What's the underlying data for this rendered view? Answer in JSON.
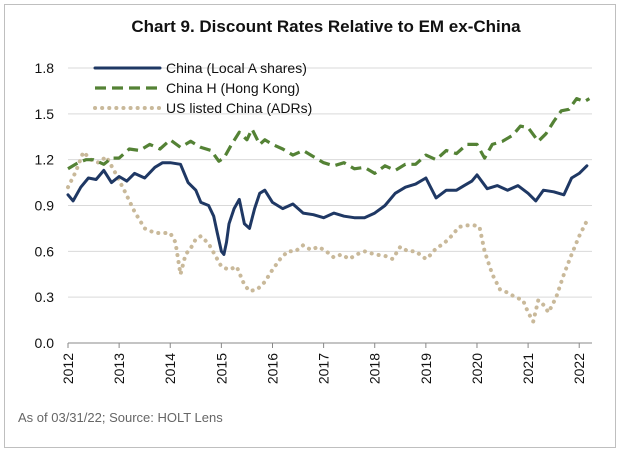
{
  "chart_data": {
    "type": "line",
    "title": "Chart 9. Discount Rates Relative to EM ex-China",
    "xlabel": "",
    "ylabel": "",
    "ylim": [
      0.0,
      1.8
    ],
    "yticks": [
      "0.0",
      "0.3",
      "0.6",
      "0.9",
      "1.2",
      "1.5",
      "1.8"
    ],
    "xlim": [
      2012.0,
      2022.25
    ],
    "xticks": [
      "2012",
      "2013",
      "2014",
      "2015",
      "2016",
      "2017",
      "2018",
      "2019",
      "2020",
      "2021",
      "2022"
    ],
    "grid": "horizontal",
    "legend_position": "top-left",
    "source_note": "As of 03/31/22; Source: HOLT Lens",
    "series": [
      {
        "name": "China (Local A shares)",
        "color": "#1f3864",
        "style": "solid",
        "x": [
          2012.0,
          2012.1,
          2012.25,
          2012.4,
          2012.55,
          2012.7,
          2012.85,
          2013.0,
          2013.15,
          2013.3,
          2013.5,
          2013.7,
          2013.85,
          2014.0,
          2014.2,
          2014.35,
          2014.5,
          2014.6,
          2014.75,
          2014.85,
          2014.92,
          2015.0,
          2015.05,
          2015.1,
          2015.15,
          2015.25,
          2015.35,
          2015.45,
          2015.55,
          2015.65,
          2015.75,
          2015.85,
          2016.0,
          2016.2,
          2016.4,
          2016.6,
          2016.8,
          2017.0,
          2017.2,
          2017.4,
          2017.6,
          2017.8,
          2018.0,
          2018.2,
          2018.4,
          2018.6,
          2018.8,
          2019.0,
          2019.2,
          2019.4,
          2019.6,
          2019.75,
          2019.9,
          2020.0,
          2020.2,
          2020.4,
          2020.6,
          2020.8,
          2021.0,
          2021.15,
          2021.3,
          2021.5,
          2021.7,
          2021.85,
          2022.0,
          2022.15
        ],
        "values": [
          0.97,
          0.93,
          1.02,
          1.08,
          1.07,
          1.13,
          1.05,
          1.09,
          1.06,
          1.11,
          1.08,
          1.15,
          1.18,
          1.18,
          1.17,
          1.05,
          1.0,
          0.92,
          0.9,
          0.83,
          0.72,
          0.6,
          0.58,
          0.66,
          0.78,
          0.88,
          0.94,
          0.78,
          0.75,
          0.88,
          0.98,
          1.0,
          0.92,
          0.88,
          0.91,
          0.85,
          0.84,
          0.82,
          0.85,
          0.83,
          0.82,
          0.82,
          0.85,
          0.9,
          0.98,
          1.02,
          1.04,
          1.08,
          0.95,
          1.0,
          1.0,
          1.03,
          1.06,
          1.1,
          1.01,
          1.03,
          1.0,
          1.03,
          0.98,
          0.93,
          1.0,
          0.99,
          0.97,
          1.08,
          1.11,
          1.16
        ]
      },
      {
        "name": "China H (Hong Kong)",
        "color": "#548235",
        "style": "dashed",
        "x": [
          2012.0,
          2012.2,
          2012.35,
          2012.5,
          2012.7,
          2012.85,
          2013.0,
          2013.2,
          2013.4,
          2013.6,
          2013.8,
          2014.0,
          2014.2,
          2014.4,
          2014.6,
          2014.8,
          2014.95,
          2015.05,
          2015.2,
          2015.35,
          2015.5,
          2015.6,
          2015.75,
          2015.85,
          2016.0,
          2016.2,
          2016.4,
          2016.6,
          2016.8,
          2017.0,
          2017.2,
          2017.4,
          2017.6,
          2017.8,
          2018.0,
          2018.2,
          2018.4,
          2018.6,
          2018.8,
          2019.0,
          2019.2,
          2019.4,
          2019.6,
          2019.8,
          2020.0,
          2020.15,
          2020.3,
          2020.5,
          2020.7,
          2020.85,
          2021.0,
          2021.2,
          2021.35,
          2021.5,
          2021.65,
          2021.8,
          2021.95,
          2022.1,
          2022.2
        ],
        "values": [
          1.14,
          1.18,
          1.2,
          1.2,
          1.17,
          1.21,
          1.21,
          1.27,
          1.26,
          1.3,
          1.27,
          1.33,
          1.28,
          1.32,
          1.28,
          1.26,
          1.19,
          1.21,
          1.3,
          1.38,
          1.33,
          1.4,
          1.3,
          1.33,
          1.3,
          1.27,
          1.23,
          1.26,
          1.22,
          1.18,
          1.16,
          1.18,
          1.14,
          1.15,
          1.11,
          1.16,
          1.13,
          1.17,
          1.17,
          1.23,
          1.2,
          1.26,
          1.24,
          1.3,
          1.3,
          1.21,
          1.3,
          1.32,
          1.36,
          1.42,
          1.41,
          1.32,
          1.37,
          1.45,
          1.52,
          1.53,
          1.6,
          1.58,
          1.6
        ]
      },
      {
        "name": "US listed China (ADRs)",
        "color": "#c9b99a",
        "style": "dotted",
        "x": [
          2012.0,
          2012.15,
          2012.3,
          2012.45,
          2012.6,
          2012.75,
          2012.9,
          2013.1,
          2013.3,
          2013.5,
          2013.7,
          2013.9,
          2014.0,
          2014.1,
          2014.2,
          2014.3,
          2014.4,
          2014.5,
          2014.6,
          2014.75,
          2014.9,
          2015.0,
          2015.15,
          2015.3,
          2015.45,
          2015.55,
          2015.7,
          2015.85,
          2016.0,
          2016.15,
          2016.3,
          2016.45,
          2016.6,
          2016.75,
          2016.9,
          2017.05,
          2017.2,
          2017.35,
          2017.5,
          2017.65,
          2017.8,
          2018.0,
          2018.2,
          2018.35,
          2018.5,
          2018.65,
          2018.8,
          2019.0,
          2019.1,
          2019.2,
          2019.35,
          2019.5,
          2019.65,
          2019.8,
          2019.95,
          2020.05,
          2020.15,
          2020.3,
          2020.45,
          2020.6,
          2020.75,
          2020.9,
          2021.0,
          2021.1,
          2021.2,
          2021.3,
          2021.4,
          2021.55,
          2021.7,
          2021.85,
          2022.0,
          2022.15
        ],
        "values": [
          1.02,
          1.12,
          1.25,
          1.2,
          1.18,
          1.22,
          1.13,
          1.0,
          0.86,
          0.75,
          0.72,
          0.72,
          0.72,
          0.66,
          0.45,
          0.58,
          0.62,
          0.68,
          0.7,
          0.65,
          0.56,
          0.5,
          0.48,
          0.5,
          0.38,
          0.34,
          0.35,
          0.4,
          0.48,
          0.55,
          0.6,
          0.6,
          0.64,
          0.61,
          0.63,
          0.6,
          0.56,
          0.58,
          0.55,
          0.58,
          0.6,
          0.58,
          0.57,
          0.55,
          0.63,
          0.6,
          0.6,
          0.55,
          0.58,
          0.62,
          0.65,
          0.7,
          0.76,
          0.77,
          0.77,
          0.76,
          0.6,
          0.45,
          0.35,
          0.33,
          0.3,
          0.28,
          0.2,
          0.14,
          0.28,
          0.25,
          0.2,
          0.3,
          0.45,
          0.58,
          0.7,
          0.8
        ]
      }
    ]
  }
}
